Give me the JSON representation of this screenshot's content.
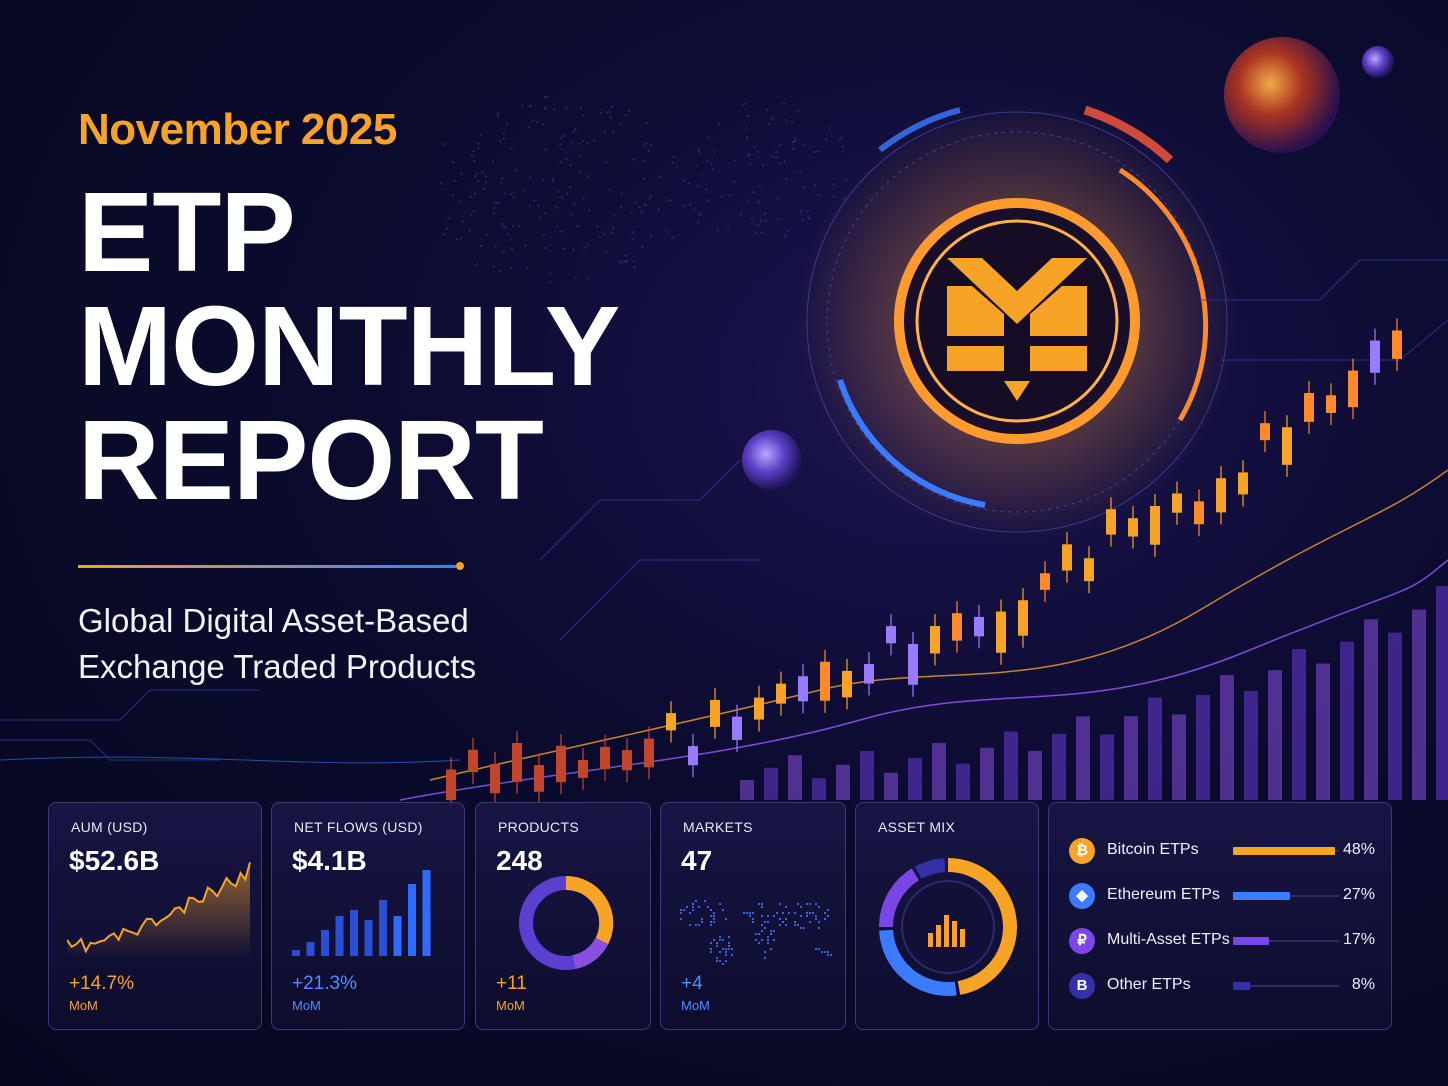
{
  "header": {
    "date": "November 2025",
    "title_lines": [
      "ETP",
      "MONTHLY",
      "REPORT"
    ],
    "subtitle_lines": [
      "Global Digital Asset-Based",
      "Exchange Traded Products"
    ]
  },
  "colors": {
    "orange": "#f6a326",
    "blue": "#3b7bff",
    "purple": "#7a47e6",
    "navy": "#3431a8",
    "background": "#0b0b2e"
  },
  "cards": [
    {
      "label": "AUM (USD)",
      "value": "$52.6B",
      "change": "+14.7%",
      "period": "MoM",
      "accent": "orange",
      "viz": "area-line-chart"
    },
    {
      "label": "NET FLOWS (USD)",
      "value": "$4.1B",
      "change": "+21.3%",
      "period": "MoM",
      "accent": "blue",
      "viz": "bar-chart"
    },
    {
      "label": "PRODUCTS",
      "value": "248",
      "change": "+11",
      "period": "MoM",
      "accent": "orange",
      "viz": "donut-chart"
    },
    {
      "label": "MARKETS",
      "value": "47",
      "change": "+4",
      "period": "MoM",
      "accent": "blue",
      "viz": "world-map"
    },
    {
      "label": "ASSET MIX",
      "viz": "ring-chart"
    }
  ],
  "asset_mix": [
    {
      "name": "Bitcoin ETPs",
      "percent": "48%",
      "share": 0.48,
      "icon": "bitcoin-icon",
      "glyph": "₿",
      "color": "#f6a326"
    },
    {
      "name": "Ethereum ETPs",
      "percent": "27%",
      "share": 0.27,
      "icon": "ethereum-icon",
      "glyph": "◆",
      "color": "#3b7bff"
    },
    {
      "name": "Multi-Asset ETPs",
      "percent": "17%",
      "share": 0.17,
      "icon": "multi-asset-icon",
      "glyph": "₽",
      "color": "#7a47e6"
    },
    {
      "name": "Other ETPs",
      "percent": "8%",
      "share": 0.08,
      "icon": "other-icon",
      "glyph": "B",
      "color": "#3431a8"
    }
  ]
}
